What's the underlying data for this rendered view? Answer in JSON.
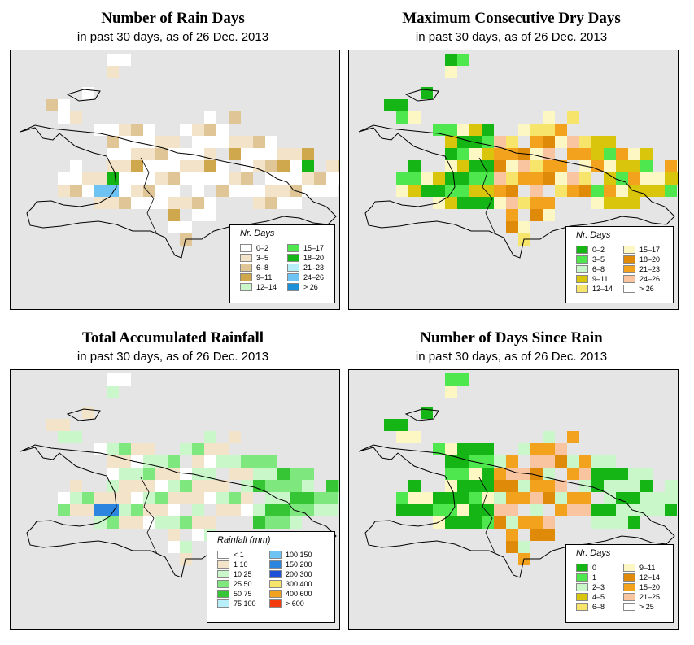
{
  "panels": [
    {
      "id": "rain-days",
      "title": "Number of Rain Days",
      "subtitle": "in past 30 days, as of  26 Dec. 2013",
      "legend_title": "Nr. Days",
      "legend": [
        {
          "label": "0–2",
          "color": "#ffffff"
        },
        {
          "label": "3–5",
          "color": "#f2e3c9"
        },
        {
          "label": "6–8",
          "color": "#e0c596"
        },
        {
          "label": "9–11",
          "color": "#cfa84e"
        },
        {
          "label": "12–14",
          "color": "#c9f7c9"
        },
        {
          "label": "15–17",
          "color": "#4ee84e"
        },
        {
          "label": "18–20",
          "color": "#16b516"
        },
        {
          "label": "21–23",
          "color": "#b7eef7"
        },
        {
          "label": "24–26",
          "color": "#6ec3f2"
        },
        {
          "label": "> 26",
          "color": "#1c8fd8"
        }
      ]
    },
    {
      "id": "dry-days",
      "title": "Maximum Consecutive Dry Days",
      "subtitle": "in past 30 days, as of  26 Dec. 2013",
      "legend_title": "Nr. Days",
      "legend": [
        {
          "label": "0–2",
          "color": "#16b516"
        },
        {
          "label": "3–5",
          "color": "#4ee84e"
        },
        {
          "label": "6–8",
          "color": "#c9f7c9"
        },
        {
          "label": "9–11",
          "color": "#d9c50c"
        },
        {
          "label": "12–14",
          "color": "#f7e56b"
        },
        {
          "label": "15–17",
          "color": "#fdf7c3"
        },
        {
          "label": "18–20",
          "color": "#e08a0a"
        },
        {
          "label": "21–23",
          "color": "#f3a21d"
        },
        {
          "label": "24–26",
          "color": "#f9c4a0"
        },
        {
          "label": "> 26",
          "color": "#ffffff"
        }
      ]
    },
    {
      "id": "rainfall",
      "title": "Total Accumulated Rainfall",
      "subtitle": "in past 30 days, as of  26 Dec. 2013",
      "legend_title": "Rainfall (mm)",
      "legend": [
        {
          "label": "< 1",
          "color": "#ffffff"
        },
        {
          "label": "1   10",
          "color": "#f2e3c9"
        },
        {
          "label": "10   25",
          "color": "#c9f7c9"
        },
        {
          "label": "25   50",
          "color": "#7ee87e"
        },
        {
          "label": "50   75",
          "color": "#35c535"
        },
        {
          "label": "75  100",
          "color": "#b7eef7"
        },
        {
          "label": "100  150",
          "color": "#6ec3f2"
        },
        {
          "label": "150  200",
          "color": "#2c86e0"
        },
        {
          "label": "200  300",
          "color": "#1c4fd8"
        },
        {
          "label": "300  400",
          "color": "#f7e56b"
        },
        {
          "label": "400  600",
          "color": "#f3a21d"
        },
        {
          "label": "> 600",
          "color": "#f23a0c"
        }
      ]
    },
    {
      "id": "days-since-rain",
      "title": "Number of Days Since Rain",
      "subtitle": "in past 30 days, as of  26 Dec. 2013",
      "legend_title": "Nr. Days",
      "legend": [
        {
          "label": "0",
          "color": "#16b516"
        },
        {
          "label": "1",
          "color": "#4ee84e"
        },
        {
          "label": "2–3",
          "color": "#c9f7c9"
        },
        {
          "label": "4–5",
          "color": "#d9c50c"
        },
        {
          "label": "6–8",
          "color": "#f7e56b"
        },
        {
          "label": "9–11",
          "color": "#fdf7c3"
        },
        {
          "label": "12–14",
          "color": "#e08a0a"
        },
        {
          "label": "15–20",
          "color": "#f3a21d"
        },
        {
          "label": "21–25",
          "color": "#f9c4a0"
        },
        {
          "label": "> 25",
          "color": "#ffffff"
        }
      ]
    }
  ]
}
